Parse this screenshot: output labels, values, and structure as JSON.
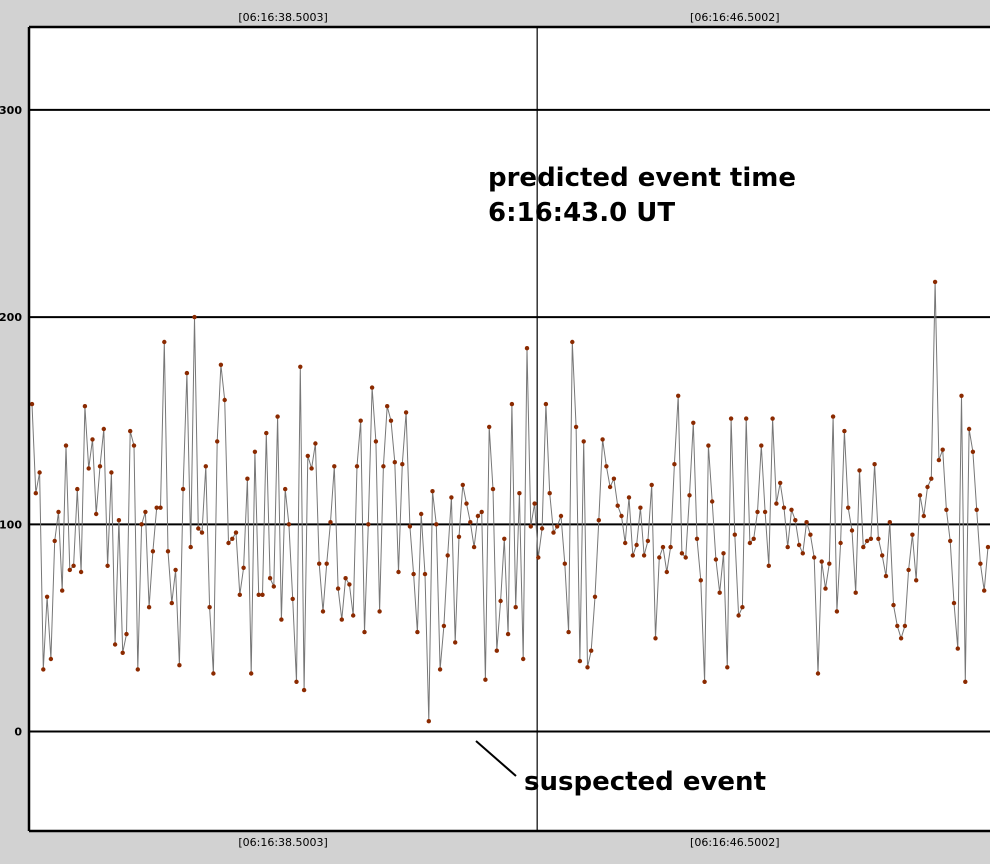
{
  "chart_data": {
    "type": "line",
    "title": "",
    "xlabel": "",
    "ylabel": "",
    "ylim": [
      -48,
      340
    ],
    "y_ticks": [
      0,
      100,
      200,
      300
    ],
    "time_markers": [
      "[06:16:38.5003]",
      "[06:16:46.5002]"
    ],
    "x_range_seconds": [
      34.0,
      51.02
    ],
    "marker_times_seconds": [
      38.5003,
      46.5002
    ],
    "vertical_line_seconds": 43.0,
    "grid": "horizontal",
    "colors": {
      "line": "#777777",
      "marker": "#8b2a00",
      "axis": "#000000",
      "background": "#ffffff"
    },
    "annotations": {
      "predicted_line1": "predicted event time",
      "predicted_line2": "6:16:43.0 UT",
      "suspected": "suspected event"
    },
    "series": [
      {
        "values": [
          158,
          115,
          125,
          30,
          65,
          35,
          92,
          106,
          68,
          138,
          78,
          80,
          117,
          77,
          157,
          127,
          141,
          105,
          128,
          146,
          80,
          125,
          42,
          102,
          38,
          47,
          145,
          138,
          30,
          100,
          106,
          60,
          87,
          108,
          108,
          188,
          87,
          62,
          78,
          32,
          117,
          173,
          89,
          200,
          98,
          96,
          128,
          60,
          28,
          140,
          177,
          160,
          91,
          93,
          96,
          66,
          79,
          122,
          28,
          135,
          66,
          66,
          144,
          74,
          70,
          152,
          54,
          117,
          100,
          64,
          24,
          176,
          20,
          133,
          127,
          139,
          81,
          58,
          81,
          101,
          128,
          69,
          54,
          74,
          71,
          56,
          128,
          150,
          48,
          100,
          166,
          140,
          58,
          128,
          157,
          150,
          130,
          77,
          129,
          154,
          99,
          76,
          48,
          105,
          76,
          5,
          116,
          100,
          30,
          51,
          85,
          113,
          43,
          94,
          119,
          110,
          101,
          89,
          104,
          106,
          25,
          147,
          117,
          39,
          63,
          93,
          47,
          158,
          60,
          115,
          35,
          185,
          99,
          110,
          84,
          98,
          158,
          115,
          96,
          99,
          104,
          81,
          48,
          188,
          147,
          34,
          140,
          31,
          39,
          65,
          102,
          141,
          128,
          118,
          122,
          109,
          104,
          91,
          113,
          85,
          90,
          108,
          85,
          92,
          119,
          45,
          84,
          89,
          77,
          89,
          129,
          162,
          86,
          84,
          114,
          149,
          93,
          73,
          24,
          138,
          111,
          83,
          67,
          86,
          31,
          151,
          95,
          56,
          60,
          151,
          91,
          93,
          106,
          138,
          106,
          80,
          151,
          110,
          120,
          108,
          89,
          107,
          102,
          90,
          86,
          101,
          95,
          84,
          28,
          82,
          69,
          81,
          152,
          58,
          91,
          145,
          108,
          97,
          67,
          126,
          89,
          92,
          93,
          129,
          93,
          85,
          75,
          101,
          61,
          51,
          45,
          51,
          78,
          95,
          73,
          114,
          104,
          118,
          122,
          217,
          131,
          136,
          107,
          92,
          62,
          40,
          162,
          24,
          146,
          135,
          107,
          81,
          68,
          89
        ]
      }
    ]
  }
}
